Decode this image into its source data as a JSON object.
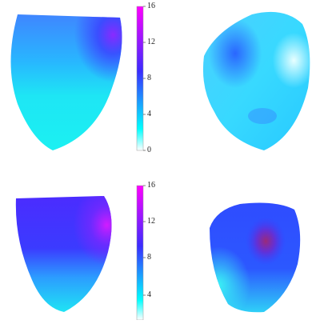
{
  "figure": {
    "panels": [
      {
        "name": "top-left-heart-view"
      },
      {
        "name": "top-right-heart-view"
      },
      {
        "name": "bottom-left-heart-view"
      },
      {
        "name": "bottom-right-heart-view"
      }
    ],
    "colorbars": [
      {
        "ticks": [
          "16",
          "12",
          "8",
          "4",
          "0"
        ],
        "colors": [
          "#ff00ff",
          "#3a2cff",
          "#00ffff",
          "#ffffff"
        ]
      },
      {
        "ticks": [
          "16",
          "12",
          "8",
          "4"
        ],
        "colors": [
          "#ff00ff",
          "#3a2cff",
          "#00ffff",
          "#ffffff"
        ]
      }
    ]
  }
}
